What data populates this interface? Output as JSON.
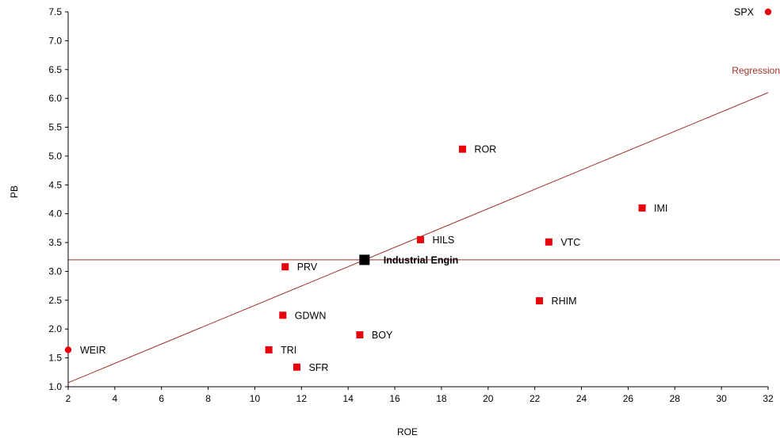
{
  "chart_data": {
    "type": "scatter",
    "xlabel": "ROE",
    "ylabel": "PB",
    "xlim": [
      2,
      32
    ],
    "ylim": [
      1.0,
      7.5
    ],
    "x_ticks": [
      2,
      4,
      6,
      8,
      10,
      12,
      14,
      16,
      18,
      20,
      22,
      24,
      26,
      28,
      30,
      32
    ],
    "y_ticks": [
      1.0,
      1.5,
      2.0,
      2.5,
      3.0,
      3.5,
      4.0,
      4.5,
      5.0,
      5.5,
      6.0,
      6.5,
      7.0,
      7.5
    ],
    "grid": false,
    "colors": {
      "points": "#e8000b",
      "highlight": "#000000",
      "lines": "#a0322a"
    },
    "points": [
      {
        "label": "ROR",
        "x": 18.9,
        "y": 5.12,
        "marker": "square"
      },
      {
        "label": "IMI",
        "x": 26.6,
        "y": 4.1,
        "marker": "square"
      },
      {
        "label": "HILS",
        "x": 17.1,
        "y": 3.55,
        "marker": "square"
      },
      {
        "label": "VTC",
        "x": 22.6,
        "y": 3.51,
        "marker": "square"
      },
      {
        "label": "PRV",
        "x": 11.3,
        "y": 3.08,
        "marker": "square"
      },
      {
        "label": "RHIM",
        "x": 22.2,
        "y": 2.49,
        "marker": "square"
      },
      {
        "label": "GDWN",
        "x": 11.2,
        "y": 2.24,
        "marker": "square"
      },
      {
        "label": "BOY",
        "x": 14.5,
        "y": 1.9,
        "marker": "square"
      },
      {
        "label": "TRI",
        "x": 10.6,
        "y": 1.64,
        "marker": "square"
      },
      {
        "label": "SFR",
        "x": 11.8,
        "y": 1.34,
        "marker": "square"
      },
      {
        "label": "WEIR",
        "x": 2.0,
        "y": 1.64,
        "marker": "circle"
      },
      {
        "label": "SPX",
        "x": 32.0,
        "y": 7.5,
        "marker": "circle"
      }
    ],
    "highlight": {
      "label": "Industrial Engin",
      "x": 14.7,
      "y": 3.2
    },
    "horizontal_line": {
      "y": 3.2
    },
    "regression": {
      "label": "Regression",
      "x": [
        2,
        32
      ],
      "y": [
        1.07,
        6.1
      ]
    }
  }
}
